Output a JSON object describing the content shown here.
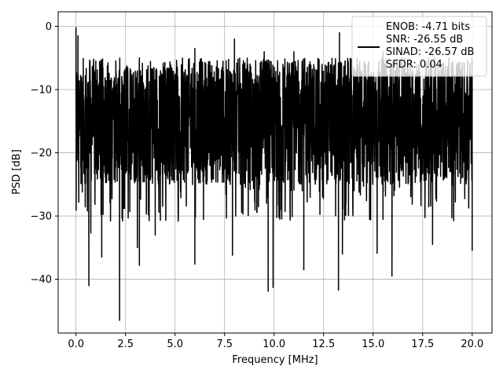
{
  "chart_data": {
    "type": "line",
    "title": "",
    "xlabel": "Frequency [MHz]",
    "ylabel": "PSD [dB]",
    "xlim": [
      -0.9,
      21.0
    ],
    "ylim": [
      -48.5,
      2.3
    ],
    "xticks": [
      0.0,
      2.5,
      5.0,
      7.5,
      10.0,
      12.5,
      15.0,
      17.5,
      20.0
    ],
    "xtick_labels": [
      "0.0",
      "2.5",
      "5.0",
      "7.5",
      "10.0",
      "12.5",
      "15.0",
      "17.5",
      "20.0"
    ],
    "yticks": [
      0,
      -10,
      -20,
      -30,
      -40
    ],
    "ytick_labels": [
      "0",
      "−10",
      "−20",
      "−30",
      "−40"
    ],
    "grid": true,
    "legend": {
      "placement": "upper-right",
      "entries": [
        "ENOB: -4.71 bits",
        "SNR: -26.55 dB",
        "SINAD: -26.57 dB",
        "SFDR: 0.04"
      ]
    },
    "series": [
      {
        "color": "#000000",
        "x_range": [
          0.0,
          20.0
        ],
        "noise_band_db": [
          -25.0,
          -5.0
        ],
        "peaks": [
          {
            "x": 0.0,
            "y": -0.2
          },
          {
            "x": 0.1,
            "y": -1.5
          },
          {
            "x": 0.25,
            "y": -12.0
          },
          {
            "x": 1.0,
            "y": -5.5
          },
          {
            "x": 3.2,
            "y": -5.0
          },
          {
            "x": 6.0,
            "y": -3.5
          },
          {
            "x": 8.0,
            "y": -2.0
          },
          {
            "x": 9.5,
            "y": -4.0
          },
          {
            "x": 11.0,
            "y": -4.0
          },
          {
            "x": 13.3,
            "y": -1.0
          },
          {
            "x": 15.5,
            "y": -4.0
          },
          {
            "x": 17.8,
            "y": -5.0
          },
          {
            "x": 20.0,
            "y": -8.0
          }
        ],
        "dips": [
          {
            "x": 0.35,
            "y": -17.5
          },
          {
            "x": 0.65,
            "y": -41.0
          },
          {
            "x": 0.75,
            "y": -32.7
          },
          {
            "x": 1.3,
            "y": -36.5
          },
          {
            "x": 2.2,
            "y": -46.5
          },
          {
            "x": 3.1,
            "y": -35.0
          },
          {
            "x": 3.2,
            "y": -37.8
          },
          {
            "x": 4.0,
            "y": -33.0
          },
          {
            "x": 6.0,
            "y": -37.6
          },
          {
            "x": 7.9,
            "y": -36.2
          },
          {
            "x": 9.7,
            "y": -41.9
          },
          {
            "x": 9.95,
            "y": -41.3
          },
          {
            "x": 11.5,
            "y": -38.5
          },
          {
            "x": 13.25,
            "y": -41.7
          },
          {
            "x": 13.45,
            "y": -36.0
          },
          {
            "x": 15.2,
            "y": -35.9
          },
          {
            "x": 15.95,
            "y": -39.5
          },
          {
            "x": 18.0,
            "y": -34.5
          },
          {
            "x": 20.0,
            "y": -35.5
          }
        ]
      }
    ]
  }
}
